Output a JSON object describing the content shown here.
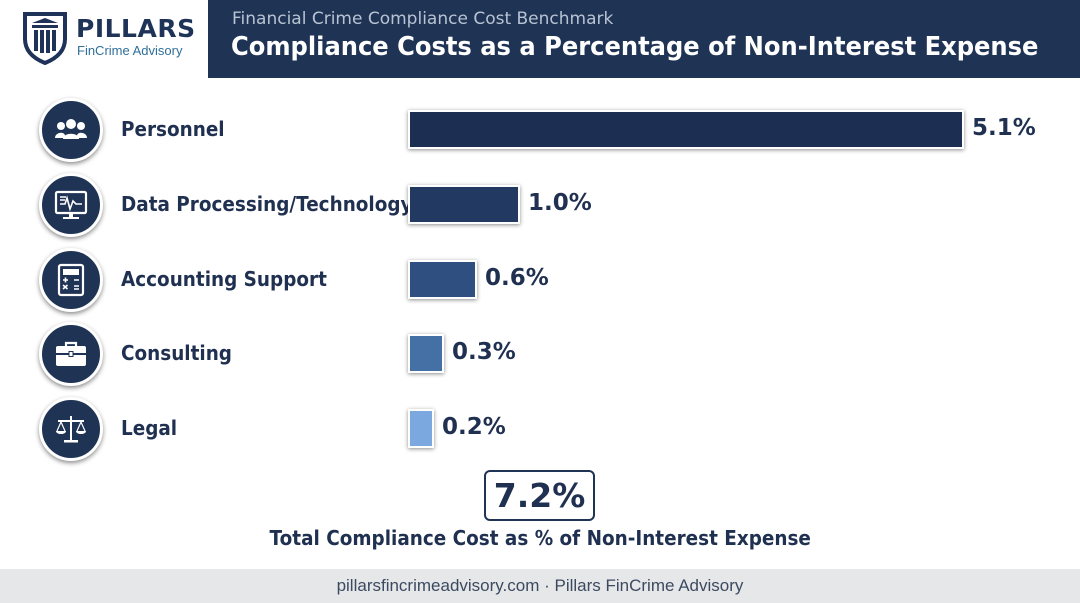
{
  "brand": {
    "name": "PILLARS",
    "tagline": "FinCrime Advisory"
  },
  "header": {
    "subtitle": "Financial Crime Compliance Cost Benchmark",
    "title": "Compliance Costs as a Percentage of Non-Interest Expense"
  },
  "chart_data": {
    "type": "bar",
    "orientation": "horizontal",
    "title": "Compliance Costs as a Percentage of Non-Interest Expense",
    "categories": [
      "Personnel",
      "Data Processing/Technology",
      "Accounting Support",
      "Consulting",
      "Legal"
    ],
    "values": [
      5.1,
      1.0,
      0.6,
      0.3,
      0.2
    ],
    "value_labels": [
      "5.1%",
      "1.0%",
      "0.6%",
      "0.3%",
      "0.2%"
    ],
    "icons": [
      "people-icon",
      "monitor-chart-icon",
      "calculator-icon",
      "briefcase-icon",
      "scales-icon"
    ],
    "bar_colors": [
      "#1c2f52",
      "#223a62",
      "#2f4f80",
      "#4570a6",
      "#7aa8df"
    ],
    "xlim": [
      0,
      5.1
    ],
    "grid": false,
    "legend": "none"
  },
  "total": {
    "value": "7.2%",
    "caption": "Total Compliance Cost as % of Non-Interest Expense"
  },
  "footer": {
    "text": "pillarsfincrimeadvisory.com · Pillars FinCrime Advisory"
  },
  "colors": {
    "navy": "#1f3354",
    "accent": "#2f6f9a",
    "footer_bg": "#e6e7e9"
  }
}
